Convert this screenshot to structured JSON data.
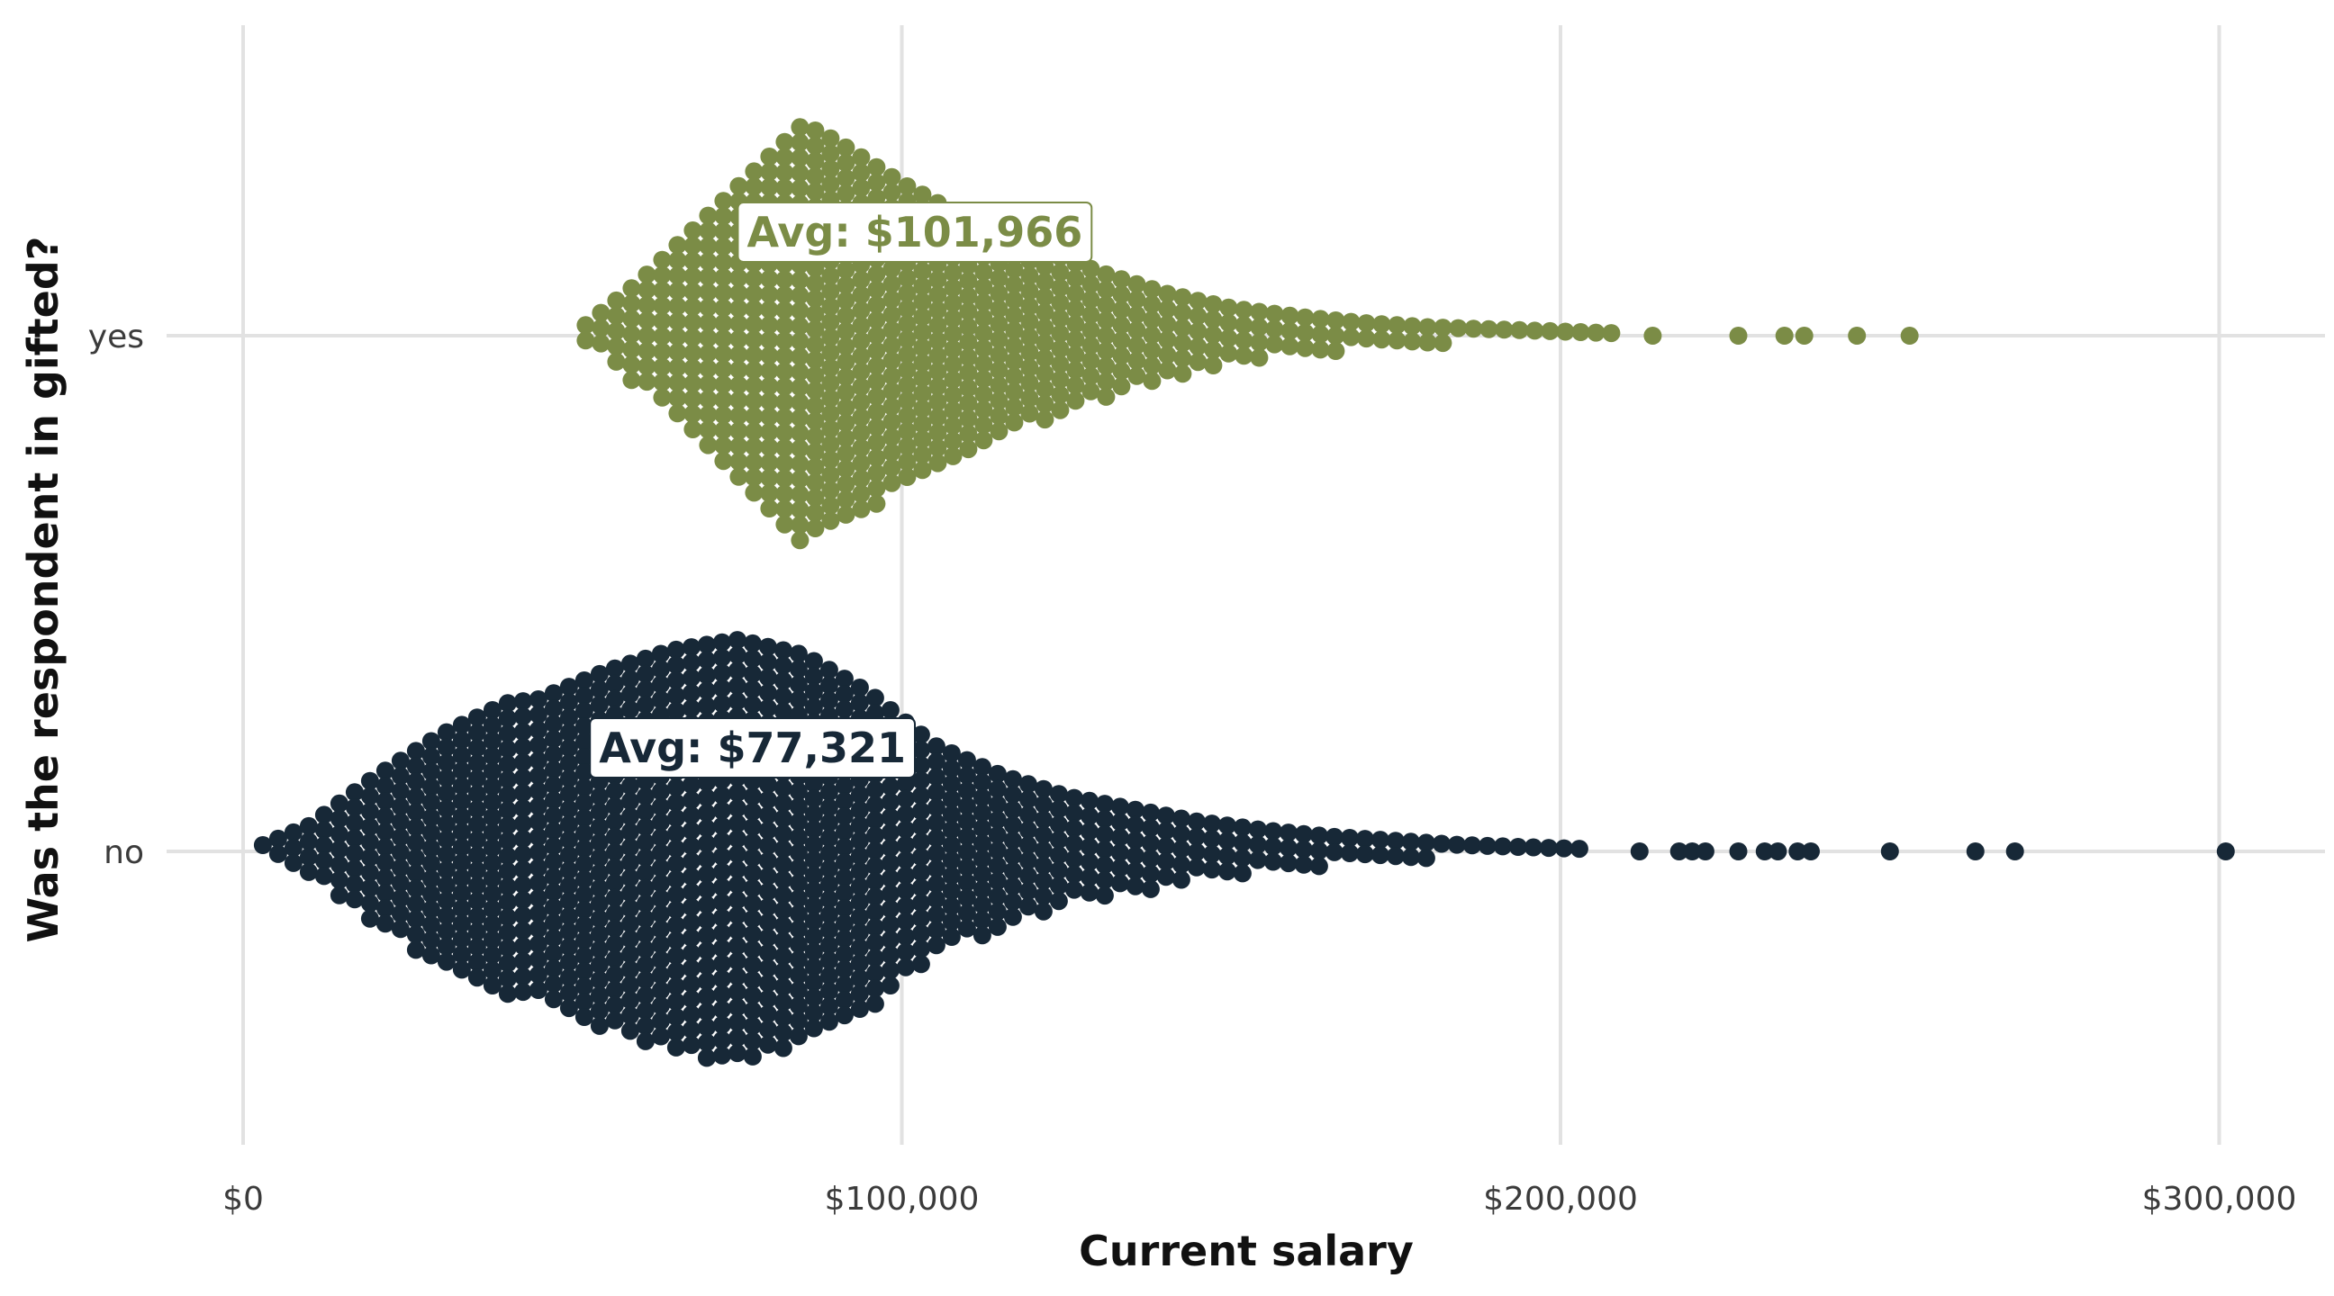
{
  "chart_data": {
    "type": "scatter",
    "subtype": "beeswarm",
    "title": "",
    "xlabel": "Current salary",
    "ylabel": "Was the respondent in gifted?",
    "xlim": [
      -10000,
      315000
    ],
    "x_ticks": [
      0,
      100000,
      200000,
      300000
    ],
    "x_tick_labels": [
      "$0",
      "$100,000",
      "$200,000",
      "$300,000"
    ],
    "categories": [
      "no",
      "yes"
    ],
    "grid": true,
    "legend": "none",
    "series": [
      {
        "category": "yes",
        "color": "#7b8c46",
        "mean": 101966,
        "mean_label": "Avg: $101,966",
        "range": [
          52000,
          254000
        ],
        "density_profile": [
          [
            52000,
            0.05
          ],
          [
            60000,
            0.25
          ],
          [
            70000,
            0.55
          ],
          [
            80000,
            0.85
          ],
          [
            85000,
            1.0
          ],
          [
            90000,
            0.92
          ],
          [
            100000,
            0.72
          ],
          [
            110000,
            0.55
          ],
          [
            120000,
            0.42
          ],
          [
            130000,
            0.3
          ],
          [
            140000,
            0.2
          ],
          [
            150000,
            0.13
          ],
          [
            160000,
            0.09
          ],
          [
            170000,
            0.06
          ],
          [
            180000,
            0.04
          ],
          [
            190000,
            0.03
          ],
          [
            200000,
            0.02
          ],
          [
            210000,
            0.01
          ]
        ],
        "outliers": [
          214000,
          227000,
          234000,
          237000,
          245000,
          253000
        ]
      },
      {
        "category": "no",
        "color": "#172837",
        "mean": 77321,
        "mean_label": "Avg: $77,321",
        "range": [
          3000,
          301000
        ],
        "density_profile": [
          [
            3000,
            0.03
          ],
          [
            10000,
            0.12
          ],
          [
            20000,
            0.35
          ],
          [
            30000,
            0.55
          ],
          [
            40000,
            0.7
          ],
          [
            45000,
            0.72
          ],
          [
            55000,
            0.85
          ],
          [
            65000,
            0.95
          ],
          [
            75000,
            1.0
          ],
          [
            85000,
            0.93
          ],
          [
            95000,
            0.75
          ],
          [
            105000,
            0.5
          ],
          [
            115000,
            0.36
          ],
          [
            125000,
            0.26
          ],
          [
            135000,
            0.2
          ],
          [
            145000,
            0.14
          ],
          [
            155000,
            0.1
          ],
          [
            165000,
            0.07
          ],
          [
            175000,
            0.05
          ],
          [
            185000,
            0.03
          ],
          [
            195000,
            0.02
          ],
          [
            205000,
            0.01
          ]
        ],
        "outliers": [
          212000,
          218000,
          220000,
          222000,
          227000,
          231000,
          233000,
          236000,
          238000,
          250000,
          263000,
          269000,
          301000
        ]
      }
    ]
  }
}
